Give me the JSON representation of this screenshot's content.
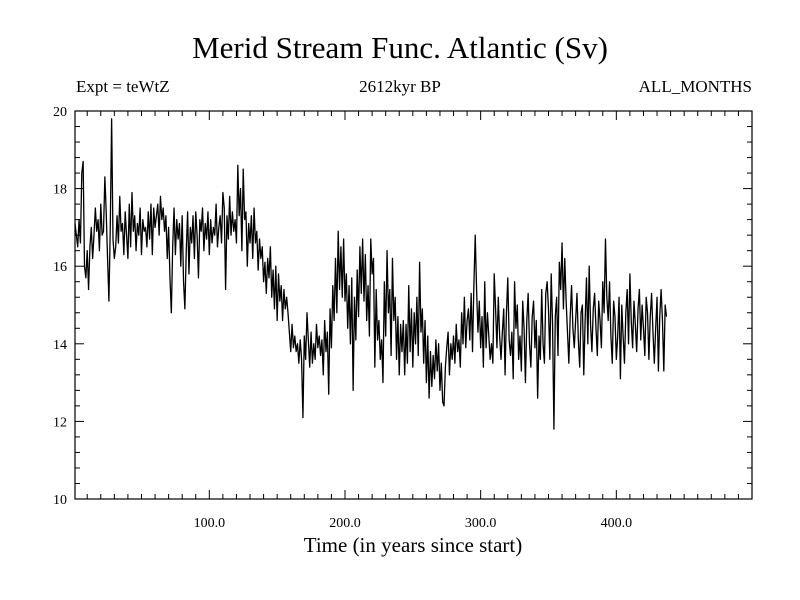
{
  "chart_data": {
    "type": "line",
    "title": "Merid Stream Func. Atlantic (Sv)",
    "subtitle_left": "Expt = teWtZ",
    "subtitle_center": "2612kyr BP",
    "subtitle_right": "ALL_MONTHS",
    "xlabel": "Time (in years since start)",
    "ylabel": "",
    "xlim": [
      1,
      500
    ],
    "ylim": [
      10,
      20
    ],
    "x_ticks": [
      100,
      200,
      300,
      400
    ],
    "x_tick_labels": [
      "100.0",
      "200.0",
      "300.0",
      "400.0"
    ],
    "y_ticks": [
      10,
      12,
      14,
      16,
      18,
      20
    ],
    "y_tick_labels": [
      "10",
      "12",
      "14",
      "16",
      "18",
      "20"
    ],
    "grid": false,
    "series": [
      {
        "name": "Merid Stream Func. Atlantic",
        "color": "#000000",
        "x_start": 1,
        "x_step": 1,
        "values": [
          17.1,
          16.8,
          16.5,
          17.2,
          16.6,
          18.4,
          18.7,
          16.0,
          15.7,
          16.4,
          15.4,
          16.5,
          17.0,
          16.2,
          16.8,
          17.5,
          16.9,
          17.2,
          16.4,
          17.6,
          16.8,
          16.9,
          18.3,
          17.4,
          16.2,
          15.1,
          17.0,
          19.8,
          16.7,
          16.2,
          16.5,
          17.3,
          16.6,
          17.8,
          16.9,
          17.1,
          16.3,
          17.4,
          16.8,
          16.2,
          17.6,
          16.5,
          17.9,
          16.9,
          17.3,
          16.4,
          17.1,
          16.8,
          17.5,
          16.3,
          17.2,
          16.9,
          17.0,
          16.5,
          17.4,
          16.7,
          17.6,
          16.3,
          17.5,
          17.0,
          17.3,
          17.6,
          16.8,
          17.8,
          17.2,
          17.5,
          16.9,
          17.3,
          16.2,
          17.0,
          15.7,
          14.8,
          16.5,
          17.5,
          16.3,
          17.2,
          16.7,
          17.1,
          16.0,
          17.3,
          15.6,
          14.9,
          16.4,
          17.4,
          15.8,
          17.0,
          16.6,
          17.3,
          16.2,
          17.4,
          16.8,
          15.7,
          17.2,
          16.9,
          17.5,
          16.4,
          17.1,
          16.7,
          17.4,
          16.3,
          17.2,
          16.6,
          17.0,
          16.8,
          17.6,
          16.5,
          17.0,
          17.3,
          16.6,
          17.9,
          17.5,
          15.4,
          17.3,
          16.7,
          17.8,
          16.8,
          17.4,
          16.9,
          17.2,
          16.6,
          18.6,
          17.3,
          18.0,
          16.4,
          18.5,
          17.2,
          17.4,
          16.0,
          17.1,
          16.6,
          17.3,
          16.2,
          17.5,
          16.6,
          16.9,
          15.9,
          16.7,
          16.2,
          16.5,
          15.6,
          16.1,
          15.3,
          16.2,
          15.7,
          16.5,
          15.2,
          15.9,
          14.9,
          16.0,
          14.6,
          15.8,
          15.1,
          15.5,
          14.6,
          15.4,
          14.9,
          15.2,
          14.8,
          14.3,
          13.8,
          14.5,
          13.9,
          14.2,
          13.8,
          14.0,
          13.5,
          14.1,
          13.6,
          12.1,
          14.2,
          13.6,
          14.8,
          14.1,
          13.4,
          14.3,
          13.5,
          14.0,
          13.6,
          14.5,
          13.9,
          14.2,
          13.7,
          14.1,
          13.2,
          14.6,
          13.8,
          14.3,
          12.7,
          14.9,
          13.9,
          15.5,
          14.6,
          16.2,
          14.8,
          16.9,
          15.4,
          16.5,
          15.2,
          16.7,
          15.1,
          15.8,
          14.4,
          15.5,
          14.0,
          15.7,
          12.8,
          15.2,
          14.1,
          15.9,
          14.7,
          16.5,
          15.3,
          16.7,
          15.1,
          16.3,
          14.6,
          15.5,
          14.2,
          16.7,
          15.8,
          16.2,
          13.4,
          15.4,
          14.1,
          14.6,
          13.6,
          14.1,
          13.0,
          15.6,
          14.2,
          16.4,
          14.8,
          15.4,
          13.7,
          16.2,
          14.6,
          15.2,
          13.6,
          14.7,
          13.2,
          14.5,
          13.8,
          14.6,
          13.2,
          14.5,
          13.5,
          15.5,
          13.8,
          14.9,
          13.4,
          14.8,
          14.0,
          15.2,
          13.7,
          16.1,
          14.3,
          14.9,
          13.5,
          14.6,
          13.0,
          14.2,
          12.6,
          13.8,
          12.9,
          13.7,
          13.1,
          14.1,
          13.3,
          14.0,
          12.8,
          13.5,
          12.5,
          12.4,
          13.4,
          13.9,
          14.3,
          13.2,
          14.0,
          13.6,
          14.2,
          13.5,
          14.5,
          13.8,
          14.1,
          13.4,
          14.8,
          14.0,
          15.2,
          13.9,
          14.6,
          14.9,
          14.1,
          15.3,
          13.8,
          15.5,
          16.8,
          15.4,
          14.3,
          15.1,
          13.9,
          14.7,
          13.4,
          15.6,
          13.9,
          14.8,
          14.2,
          13.6,
          14.0,
          13.5,
          15.8,
          14.9,
          13.9,
          15.2,
          14.2,
          13.6,
          14.3,
          14.9,
          13.2,
          14.8,
          15.7,
          14.1,
          13.7,
          14.3,
          13.1,
          15.6,
          14.4,
          15.0,
          13.6,
          14.2,
          13.3,
          15.1,
          14.4,
          13.0,
          14.6,
          15.3,
          14.0,
          13.4,
          14.7,
          15.1,
          13.9,
          14.6,
          12.6,
          14.2,
          13.6,
          15.4,
          14.0,
          13.5,
          15.3,
          15.6,
          14.9,
          13.6,
          15.8,
          14.5,
          11.8,
          14.7,
          15.2,
          13.7,
          16.1,
          15.4,
          16.6,
          14.9,
          16.2,
          15.1,
          14.3,
          13.5,
          14.7,
          15.5,
          14.4,
          13.9,
          14.6,
          15.3,
          14.1,
          13.4,
          14.8,
          15.0,
          13.2,
          14.6,
          15.7,
          14.0,
          16.0,
          14.5,
          13.8,
          14.9,
          15.3,
          14.4,
          13.7,
          15.1,
          14.6,
          13.9,
          15.6,
          14.8,
          16.7,
          15.2,
          14.6,
          15.6,
          14.2,
          13.5,
          15.1,
          14.7,
          13.6,
          14.2,
          15.2,
          13.1,
          15.0,
          14.2,
          13.5,
          14.8,
          15.4,
          14.0,
          15.8,
          14.6,
          13.9,
          15.1,
          14.5,
          13.8,
          14.9,
          15.4,
          14.1,
          15.0,
          14.4,
          13.7,
          15.2,
          14.8,
          13.6,
          14.7,
          15.3,
          14.3,
          13.5,
          14.4,
          15.2,
          13.3,
          14.7,
          15.4,
          14.6,
          13.3,
          15.0,
          14.7
        ]
      }
    ]
  }
}
